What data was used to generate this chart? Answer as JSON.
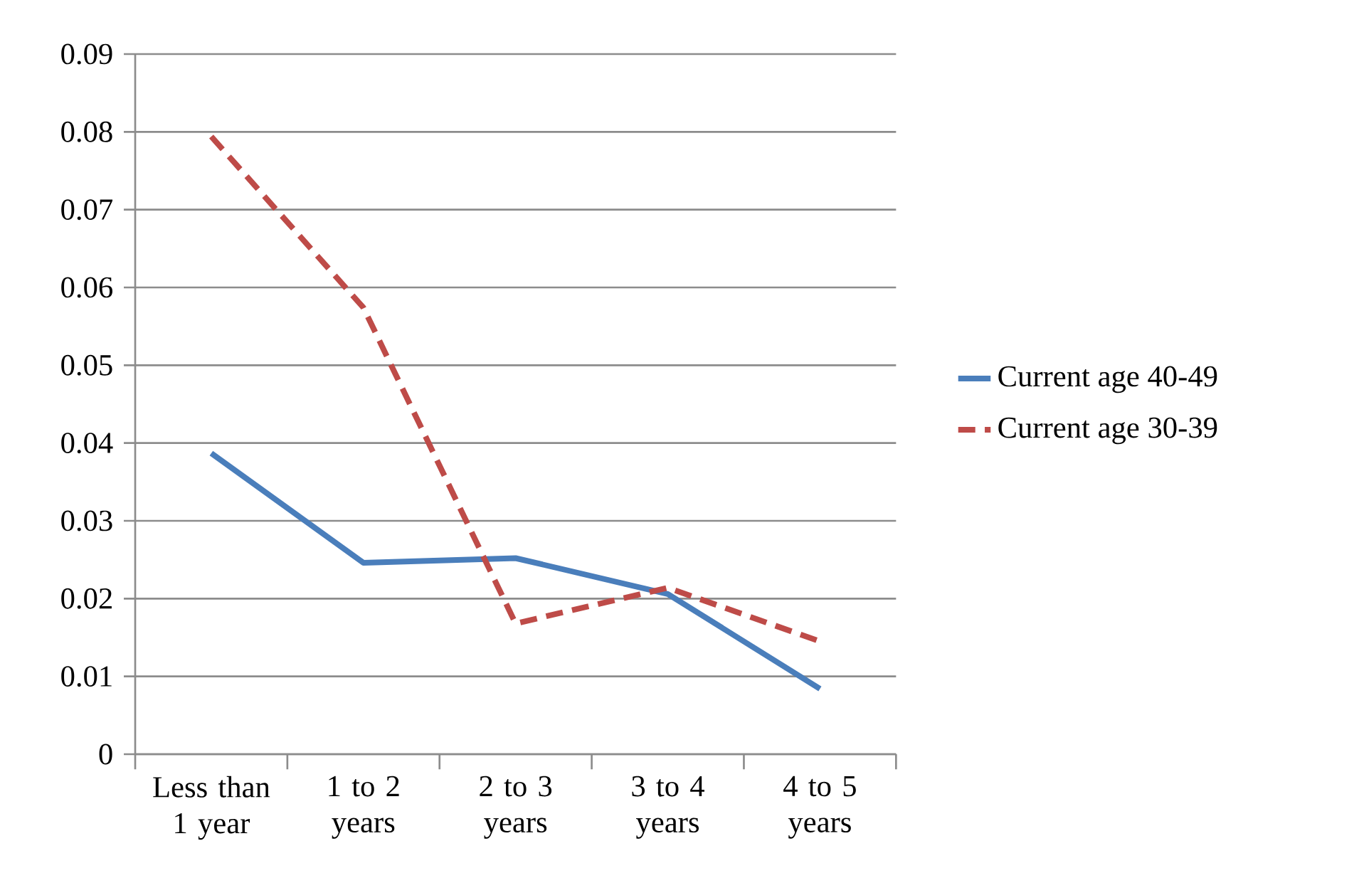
{
  "chart_data": {
    "type": "line",
    "categories": [
      "Less than 1 year",
      "1 to 2 years",
      "2 to 3 years",
      "3 to 4 years",
      "4 to 5 years"
    ],
    "series": [
      {
        "name": "Current age 40-49",
        "color": "#4a7ebb",
        "line_style": "solid",
        "values": [
          0.0387,
          0.0246,
          0.0252,
          0.0206,
          0.0084
        ]
      },
      {
        "name": "Current age 30-39",
        "color": "#be4b48",
        "line_style": "dashed",
        "values": [
          0.0794,
          0.0574,
          0.0168,
          0.0214,
          0.0145
        ]
      }
    ],
    "ylim": [
      0,
      0.09
    ],
    "yticks": [
      0,
      0.01,
      0.02,
      0.03,
      0.04,
      0.05,
      0.06,
      0.07,
      0.08,
      0.09
    ],
    "grid": "y",
    "legend": "right",
    "marker": "none"
  }
}
